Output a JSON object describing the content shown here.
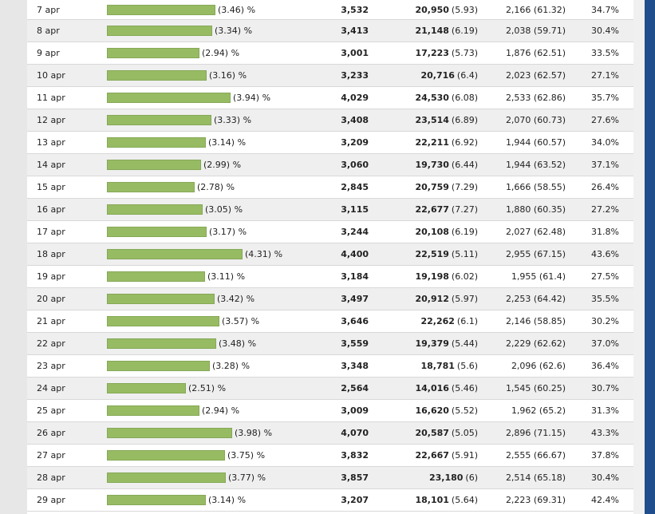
{
  "table": {
    "rows": [
      {
        "date": "7 apr",
        "share": "(3.46)",
        "pct": "%",
        "visits": "3,532",
        "pageviews": "20,950",
        "pv_ratio": "(5.93)",
        "new_visits": "2,166 (61.32)",
        "bounce": "34.7%",
        "share_value": 3.46
      },
      {
        "date": "8 apr",
        "share": "(3.34)",
        "pct": "%",
        "visits": "3,413",
        "pageviews": "21,148",
        "pv_ratio": "(6.19)",
        "new_visits": "2,038 (59.71)",
        "bounce": "30.4%",
        "share_value": 3.34
      },
      {
        "date": "9 apr",
        "share": "(2.94)",
        "pct": "%",
        "visits": "3,001",
        "pageviews": "17,223",
        "pv_ratio": "(5.73)",
        "new_visits": "1,876 (62.51)",
        "bounce": "33.5%",
        "share_value": 2.94
      },
      {
        "date": "10 apr",
        "share": "(3.16)",
        "pct": "%",
        "visits": "3,233",
        "pageviews": "20,716",
        "pv_ratio": "(6.4)",
        "new_visits": "2,023 (62.57)",
        "bounce": "27.1%",
        "share_value": 3.16
      },
      {
        "date": "11 apr",
        "share": "(3.94)",
        "pct": "%",
        "visits": "4,029",
        "pageviews": "24,530",
        "pv_ratio": "(6.08)",
        "new_visits": "2,533 (62.86)",
        "bounce": "35.7%",
        "share_value": 3.94
      },
      {
        "date": "12 apr",
        "share": "(3.33)",
        "pct": "%",
        "visits": "3,408",
        "pageviews": "23,514",
        "pv_ratio": "(6.89)",
        "new_visits": "2,070 (60.73)",
        "bounce": "27.6%",
        "share_value": 3.33
      },
      {
        "date": "13 apr",
        "share": "(3.14)",
        "pct": "%",
        "visits": "3,209",
        "pageviews": "22,211",
        "pv_ratio": "(6.92)",
        "new_visits": "1,944 (60.57)",
        "bounce": "34.0%",
        "share_value": 3.14
      },
      {
        "date": "14 apr",
        "share": "(2.99)",
        "pct": "%",
        "visits": "3,060",
        "pageviews": "19,730",
        "pv_ratio": "(6.44)",
        "new_visits": "1,944 (63.52)",
        "bounce": "37.1%",
        "share_value": 2.99
      },
      {
        "date": "15 apr",
        "share": "(2.78)",
        "pct": "%",
        "visits": "2,845",
        "pageviews": "20,759",
        "pv_ratio": "(7.29)",
        "new_visits": "1,666 (58.55)",
        "bounce": "26.4%",
        "share_value": 2.78
      },
      {
        "date": "16 apr",
        "share": "(3.05)",
        "pct": "%",
        "visits": "3,115",
        "pageviews": "22,677",
        "pv_ratio": "(7.27)",
        "new_visits": "1,880 (60.35)",
        "bounce": "27.2%",
        "share_value": 3.05
      },
      {
        "date": "17 apr",
        "share": "(3.17)",
        "pct": "%",
        "visits": "3,244",
        "pageviews": "20,108",
        "pv_ratio": "(6.19)",
        "new_visits": "2,027 (62.48)",
        "bounce": "31.8%",
        "share_value": 3.17
      },
      {
        "date": "18 apr",
        "share": "(4.31)",
        "pct": "%",
        "visits": "4,400",
        "pageviews": "22,519",
        "pv_ratio": "(5.11)",
        "new_visits": "2,955 (67.15)",
        "bounce": "43.6%",
        "share_value": 4.31
      },
      {
        "date": "19 apr",
        "share": "(3.11)",
        "pct": "%",
        "visits": "3,184",
        "pageviews": "19,198",
        "pv_ratio": "(6.02)",
        "new_visits": "1,955 (61.4)",
        "bounce": "27.5%",
        "share_value": 3.11
      },
      {
        "date": "20 apr",
        "share": "(3.42)",
        "pct": "%",
        "visits": "3,497",
        "pageviews": "20,912",
        "pv_ratio": "(5.97)",
        "new_visits": "2,253 (64.42)",
        "bounce": "35.5%",
        "share_value": 3.42
      },
      {
        "date": "21 apr",
        "share": "(3.57)",
        "pct": "%",
        "visits": "3,646",
        "pageviews": "22,262",
        "pv_ratio": "(6.1)",
        "new_visits": "2,146 (58.85)",
        "bounce": "30.2%",
        "share_value": 3.57
      },
      {
        "date": "22 apr",
        "share": "(3.48)",
        "pct": "%",
        "visits": "3,559",
        "pageviews": "19,379",
        "pv_ratio": "(5.44)",
        "new_visits": "2,229 (62.62)",
        "bounce": "37.0%",
        "share_value": 3.48
      },
      {
        "date": "23 apr",
        "share": "(3.28)",
        "pct": "%",
        "visits": "3,348",
        "pageviews": "18,781",
        "pv_ratio": "(5.6)",
        "new_visits": "2,096 (62.6)",
        "bounce": "36.4%",
        "share_value": 3.28
      },
      {
        "date": "24 apr",
        "share": "(2.51)",
        "pct": "%",
        "visits": "2,564",
        "pageviews": "14,016",
        "pv_ratio": "(5.46)",
        "new_visits": "1,545 (60.25)",
        "bounce": "30.7%",
        "share_value": 2.51
      },
      {
        "date": "25 apr",
        "share": "(2.94)",
        "pct": "%",
        "visits": "3,009",
        "pageviews": "16,620",
        "pv_ratio": "(5.52)",
        "new_visits": "1,962 (65.2)",
        "bounce": "31.3%",
        "share_value": 2.94
      },
      {
        "date": "26 apr",
        "share": "(3.98)",
        "pct": "%",
        "visits": "4,070",
        "pageviews": "20,587",
        "pv_ratio": "(5.05)",
        "new_visits": "2,896 (71.15)",
        "bounce": "43.3%",
        "share_value": 3.98
      },
      {
        "date": "27 apr",
        "share": "(3.75)",
        "pct": "%",
        "visits": "3,832",
        "pageviews": "22,667",
        "pv_ratio": "(5.91)",
        "new_visits": "2,555 (66.67)",
        "bounce": "37.8%",
        "share_value": 3.75
      },
      {
        "date": "28 apr",
        "share": "(3.77)",
        "pct": "%",
        "visits": "3,857",
        "pageviews": "23,180",
        "pv_ratio": "(6)",
        "new_visits": "2,514 (65.18)",
        "bounce": "30.4%",
        "share_value": 3.77
      },
      {
        "date": "29 apr",
        "share": "(3.14)",
        "pct": "%",
        "visits": "3,207",
        "pageviews": "18,101",
        "pv_ratio": "(5.64)",
        "new_visits": "2,223 (69.31)",
        "bounce": "42.4%",
        "share_value": 3.14
      }
    ]
  },
  "colors": {
    "bar_fill": "#97bb62",
    "row_alt": "#efefef",
    "side_panel": "#1f4e8c"
  }
}
